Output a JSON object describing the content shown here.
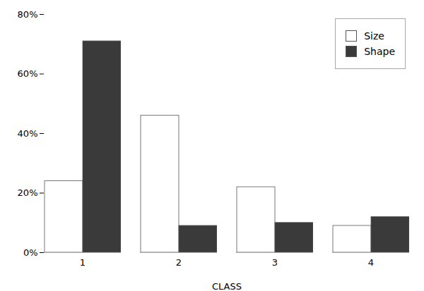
{
  "chart_data": {
    "type": "bar",
    "categories": [
      1,
      2,
      3,
      4
    ],
    "series": [
      {
        "name": "Size",
        "color": "#ffffff",
        "values": [
          0.24,
          0.46,
          0.22,
          0.09
        ]
      },
      {
        "name": "Shape",
        "color": "#3a3a3a",
        "values": [
          0.71,
          0.09,
          0.1,
          0.12
        ]
      }
    ],
    "xlabel": "CLASS",
    "ylim": [
      0,
      0.8
    ],
    "yticks": [
      {
        "value": 0.0,
        "label": "0%"
      },
      {
        "value": 0.2,
        "label": "20%"
      },
      {
        "value": 0.4,
        "label": "40%"
      },
      {
        "value": 0.6,
        "label": "60%"
      },
      {
        "value": 0.8,
        "label": "80%"
      }
    ],
    "legend": "upper right",
    "grid": false
  }
}
